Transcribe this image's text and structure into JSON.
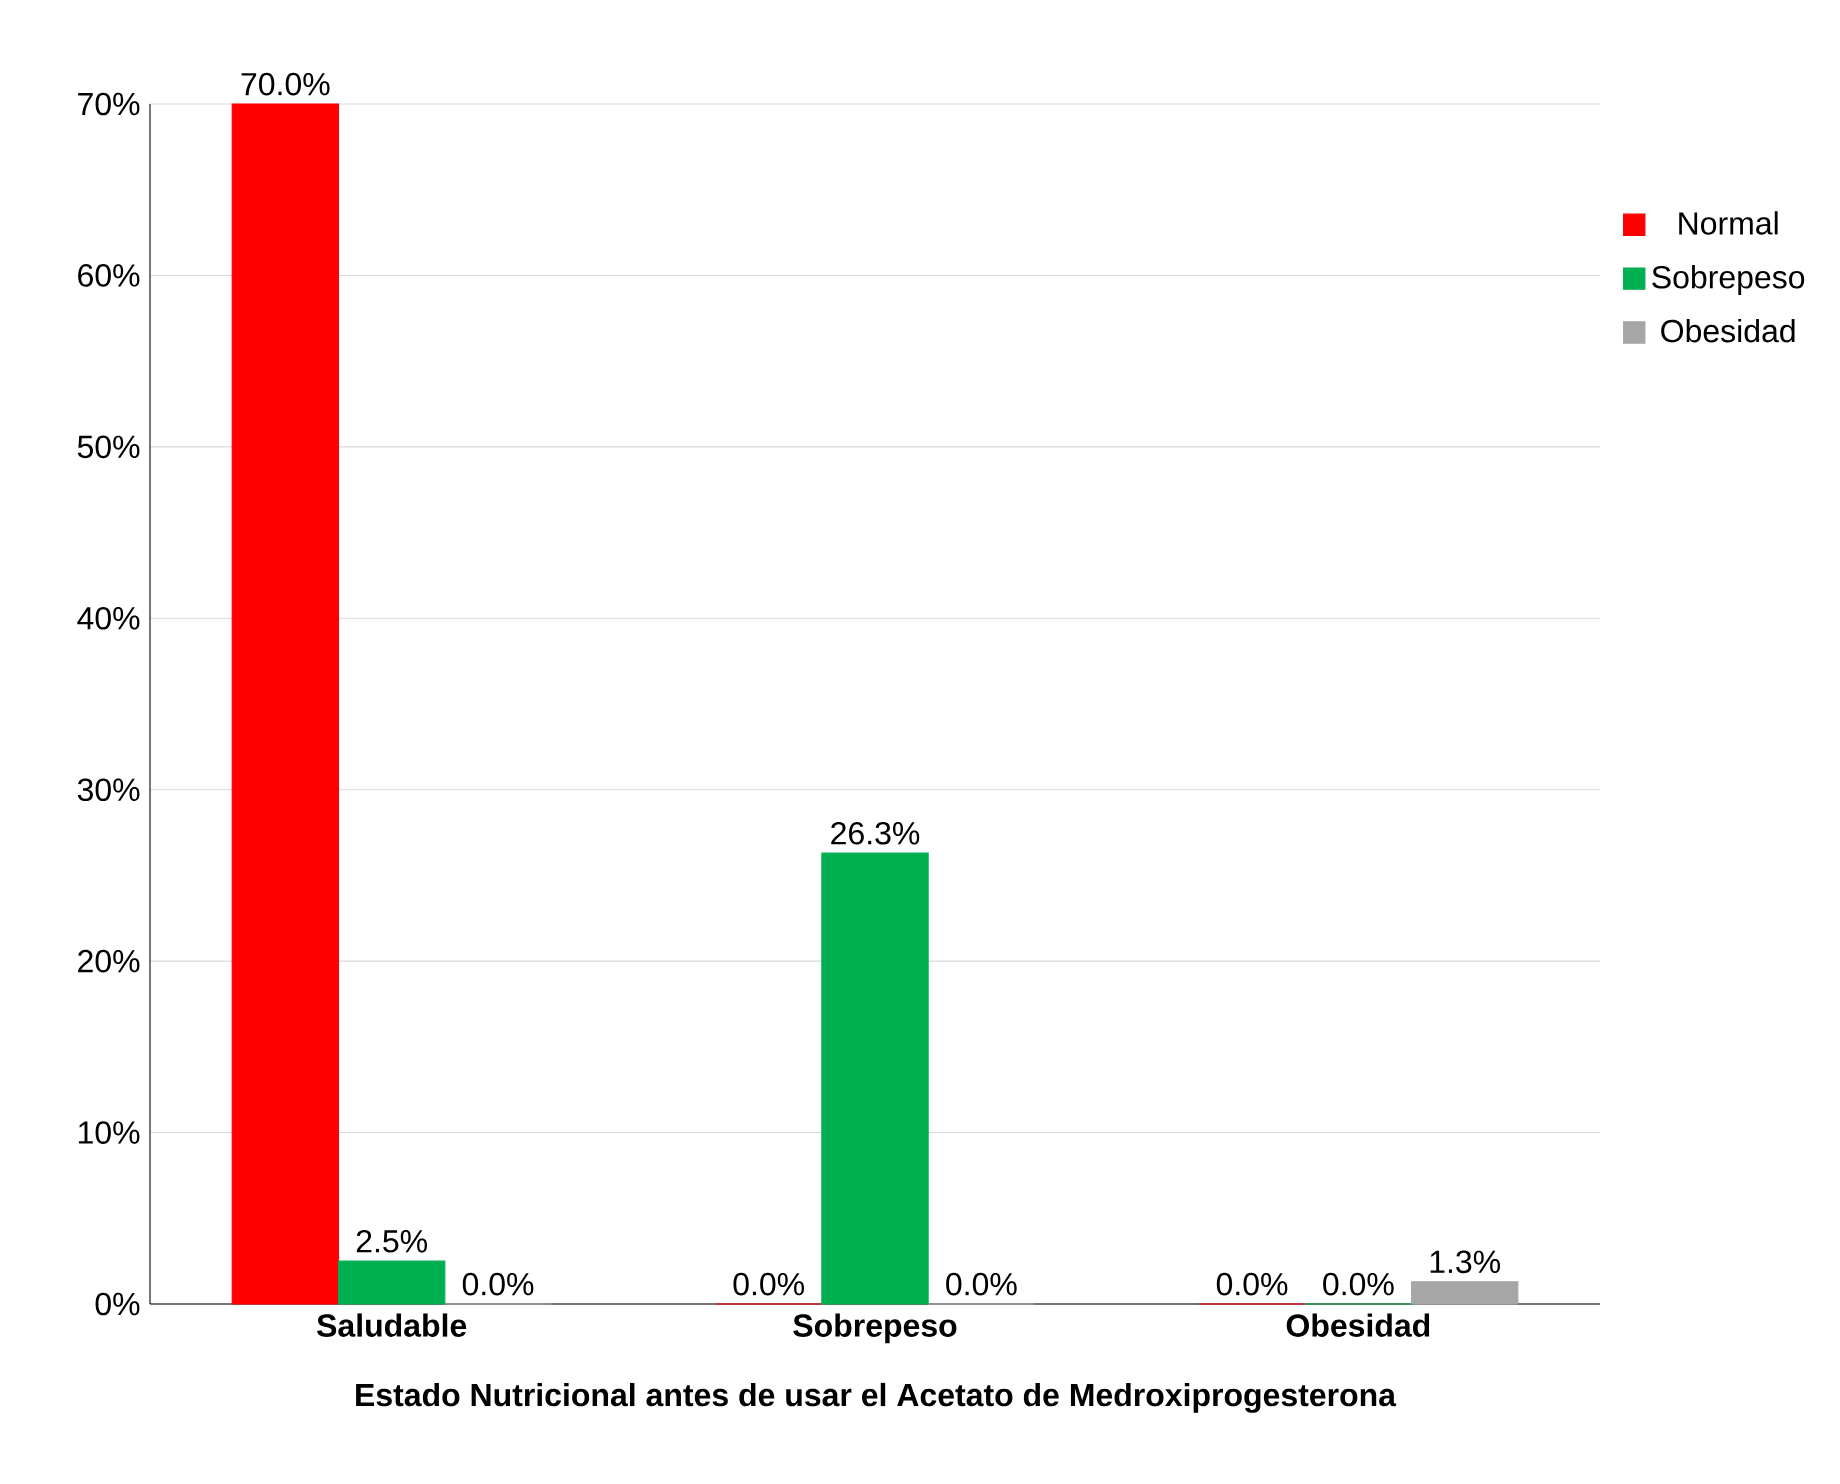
{
  "chart_data": {
    "type": "bar",
    "categories": [
      "Saludable",
      "Sobrepeso",
      "Obesidad"
    ],
    "series": [
      {
        "name": "Normal",
        "color": "#ff0000",
        "values": [
          70.0,
          0.0,
          0.0
        ],
        "value_labels": [
          "70.0%",
          "0.0%",
          "0.0%"
        ]
      },
      {
        "name": "Sobrepeso",
        "color": "#00b050",
        "values": [
          2.5,
          26.3,
          0.0
        ],
        "value_labels": [
          "2.5%",
          "26.3%",
          "0.0%"
        ]
      },
      {
        "name": "Obesidad",
        "color": "#a6a6a6",
        "values": [
          0.0,
          0.0,
          1.3
        ],
        "value_labels": [
          "0.0%",
          "0.0%",
          "1.3%"
        ]
      }
    ],
    "xlabel": "Estado Nutricional antes de usar el Acetato de Medroxiprogesterona",
    "ylim": [
      0,
      70
    ],
    "yticks": [
      {
        "value": 0,
        "label": "0%"
      },
      {
        "value": 10,
        "label": "10%"
      },
      {
        "value": 20,
        "label": "20%"
      },
      {
        "value": 30,
        "label": "30%"
      },
      {
        "value": 40,
        "label": "40%"
      },
      {
        "value": 50,
        "label": "50%"
      },
      {
        "value": 60,
        "label": "60%"
      },
      {
        "value": 70,
        "label": "70%"
      }
    ],
    "grid": "y",
    "legend": "right"
  }
}
